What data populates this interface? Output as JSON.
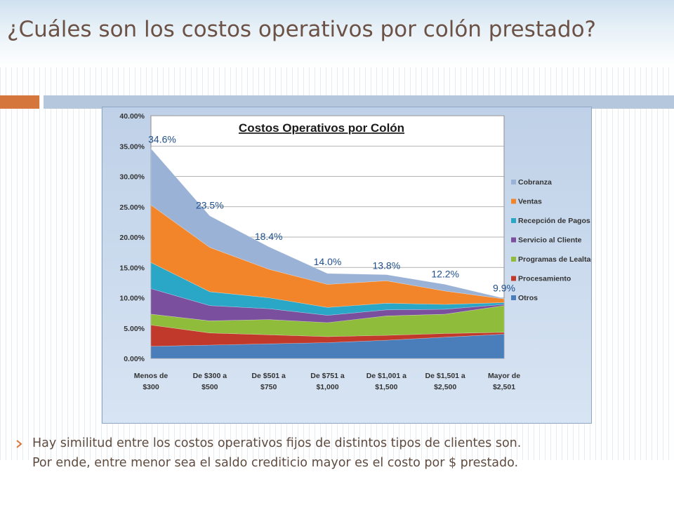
{
  "slide": {
    "title": "¿Cuáles son los costos operativos por colón prestado?",
    "bullet_lines": [
      "Hay similitud entre los costos operativos fijos de distintos tipos de clientes son.",
      "Por ende, entre menor sea el saldo crediticio mayor es el costo por $ prestado."
    ],
    "bullet_icon": "arrow-bullet-icon"
  },
  "colors": {
    "accent_orange": "#d5773d",
    "accent_blue": "#b4c7dc",
    "title_text": "#6c5246"
  },
  "chart_data": {
    "type": "area",
    "stacked": true,
    "title": "Costos Operativos por Colón",
    "categories": [
      [
        "Menos de",
        "$300"
      ],
      [
        "De $300 a",
        "$500"
      ],
      [
        "De $501 a",
        "$750"
      ],
      [
        "De $751 a",
        "$1,000"
      ],
      [
        "De $1,001 a",
        "$1,500"
      ],
      [
        "De $1,501 a",
        "$2,500"
      ],
      [
        "Mayor de",
        "$2,501"
      ]
    ],
    "y_ticks": [
      "0.00%",
      "5.00%",
      "10.00%",
      "15.00%",
      "20.00%",
      "25.00%",
      "30.00%",
      "35.00%",
      "40.00%"
    ],
    "ylim": [
      0,
      40
    ],
    "grid": true,
    "legend_position": "right",
    "series": [
      {
        "name": "Otros",
        "color": "#4a7ebb",
        "values": [
          2.0,
          2.2,
          2.4,
          2.6,
          3.0,
          3.5,
          4.0
        ]
      },
      {
        "name": "Procesamiento",
        "color": "#c0392b",
        "values": [
          3.5,
          2.0,
          1.5,
          1.0,
          0.8,
          0.6,
          0.3
        ]
      },
      {
        "name": "Programas de Lealtad",
        "color": "#8fbc3a",
        "values": [
          1.8,
          2.0,
          2.5,
          2.3,
          3.2,
          3.2,
          4.4
        ]
      },
      {
        "name": "Servicio al Cliente",
        "color": "#7a4f9e",
        "values": [
          4.2,
          2.5,
          1.8,
          1.2,
          1.0,
          0.8,
          0.2
        ]
      },
      {
        "name": "Recepción de Pagos",
        "color": "#2aa6c6",
        "values": [
          4.3,
          2.3,
          1.8,
          1.3,
          1.1,
          0.8,
          0.3
        ]
      },
      {
        "name": "Ventas",
        "color": "#f2852a",
        "values": [
          9.5,
          7.3,
          4.7,
          3.8,
          3.7,
          2.2,
          0.6
        ]
      },
      {
        "name": "Cobranza",
        "color": "#9ab2d6",
        "values": [
          9.3,
          5.2,
          3.7,
          1.8,
          1.0,
          1.1,
          0.1
        ]
      }
    ],
    "totals": [
      34.6,
      23.5,
      18.4,
      14.0,
      13.8,
      12.2,
      9.9
    ],
    "data_labels": [
      "34.6%",
      "23.5%",
      "18.4%",
      "14.0%",
      "13.8%",
      "12.2%",
      "9.9%"
    ]
  }
}
